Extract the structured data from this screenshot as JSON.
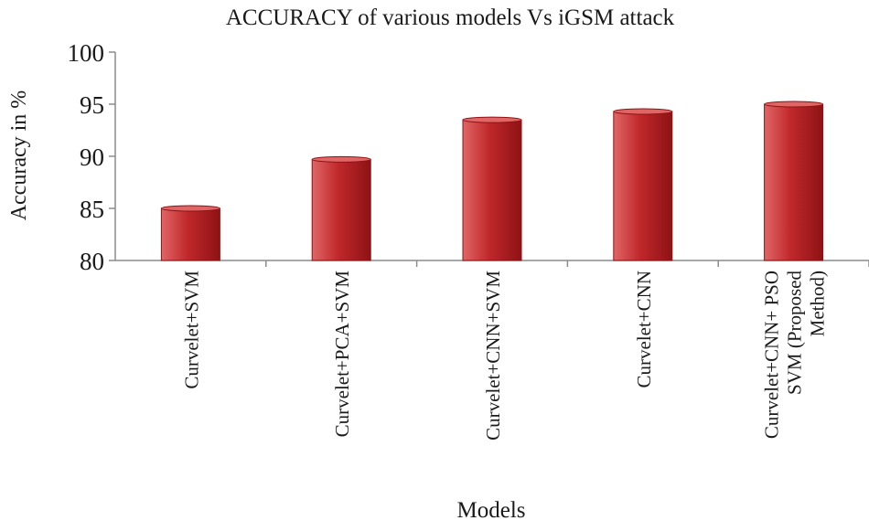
{
  "chart_data": {
    "type": "bar",
    "title": "ACCURACY  of various models Vs iGSM attack",
    "xlabel": "Models",
    "ylabel": "Accuracy in %",
    "ylim": [
      80,
      100
    ],
    "yticks": [
      80,
      85,
      90,
      95,
      100
    ],
    "grid": false,
    "categories": [
      [
        "Curvelet+SVM"
      ],
      [
        "Curvelet+PCA+SVM"
      ],
      [
        "Curvelet+CNN+SVM"
      ],
      [
        "Curvelet+CNN"
      ],
      [
        "Curvelet+CNN+ PSO",
        "SVM (Proposed",
        "Method)"
      ]
    ],
    "values": [
      85,
      89.7,
      93.5,
      94.3,
      95
    ],
    "colors": {
      "bar_light": "#e06666",
      "bar_mid": "#c0282b",
      "bar_dark": "#8e1214",
      "axis": "#8c8c8c",
      "text": "#1a1a1a"
    }
  }
}
